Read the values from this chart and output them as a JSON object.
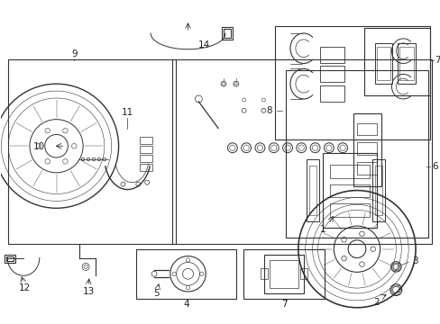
{
  "bg_color": "#ffffff",
  "line_color": "#333333",
  "figsize": [
    4.89,
    3.6
  ],
  "dpi": 100,
  "xlim": [
    0,
    4.89
  ],
  "ylim": [
    0,
    3.6
  ]
}
